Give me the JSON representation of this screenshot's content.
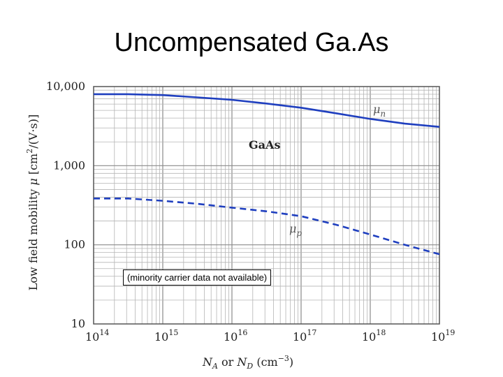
{
  "slide": {
    "title": "Uncompensated Ga.As",
    "note": "(minority carrier data not available)"
  },
  "colors": {
    "series": "#1f3fbf",
    "grid_major": "#8a8a8a",
    "grid_minor": "#b5b5b5",
    "frame": "#555555"
  },
  "chart_data": {
    "type": "line",
    "title": "",
    "annotation": "GaAs",
    "xlabel": "N_A or N_D (cm^-3)",
    "ylabel": "Low field mobility μ [cm²/(V·s)]",
    "xscale": "log",
    "yscale": "log",
    "xlim": [
      100000000000000.0,
      1e+19
    ],
    "ylim": [
      10,
      10000
    ],
    "grid": true,
    "x_ticks": [
      {
        "base": "10",
        "exp": "14",
        "value": 100000000000000.0
      },
      {
        "base": "10",
        "exp": "15",
        "value": 1000000000000000.0
      },
      {
        "base": "10",
        "exp": "16",
        "value": 1e+16
      },
      {
        "base": "10",
        "exp": "17",
        "value": 1e+17
      },
      {
        "base": "10",
        "exp": "18",
        "value": 1e+18
      },
      {
        "base": "10",
        "exp": "19",
        "value": 1e+19
      }
    ],
    "y_ticks": [
      {
        "label": "10",
        "value": 10
      },
      {
        "label": "100",
        "value": 100
      },
      {
        "label": "1,000",
        "value": 1000
      },
      {
        "label": "10,000",
        "value": 10000
      }
    ],
    "series": [
      {
        "name": "μn",
        "style": "solid",
        "x": [
          100000000000000.0,
          316000000000000.0,
          1000000000000000.0,
          3160000000000000.0,
          1e+16,
          3.16e+16,
          1e+17,
          3.16e+17,
          1e+18,
          3.16e+18,
          1e+19
        ],
        "y": [
          8000,
          8000,
          7800,
          7300,
          6800,
          6100,
          5400,
          4600,
          3900,
          3400,
          3100
        ]
      },
      {
        "name": "μp",
        "style": "dashed",
        "x": [
          100000000000000.0,
          316000000000000.0,
          1000000000000000.0,
          3160000000000000.0,
          1e+16,
          3.16e+16,
          1e+17,
          3.16e+17,
          1e+18,
          3.16e+18,
          1e+19
        ],
        "y": [
          385,
          385,
          360,
          330,
          295,
          265,
          230,
          180,
          135,
          100,
          76
        ]
      }
    ]
  }
}
